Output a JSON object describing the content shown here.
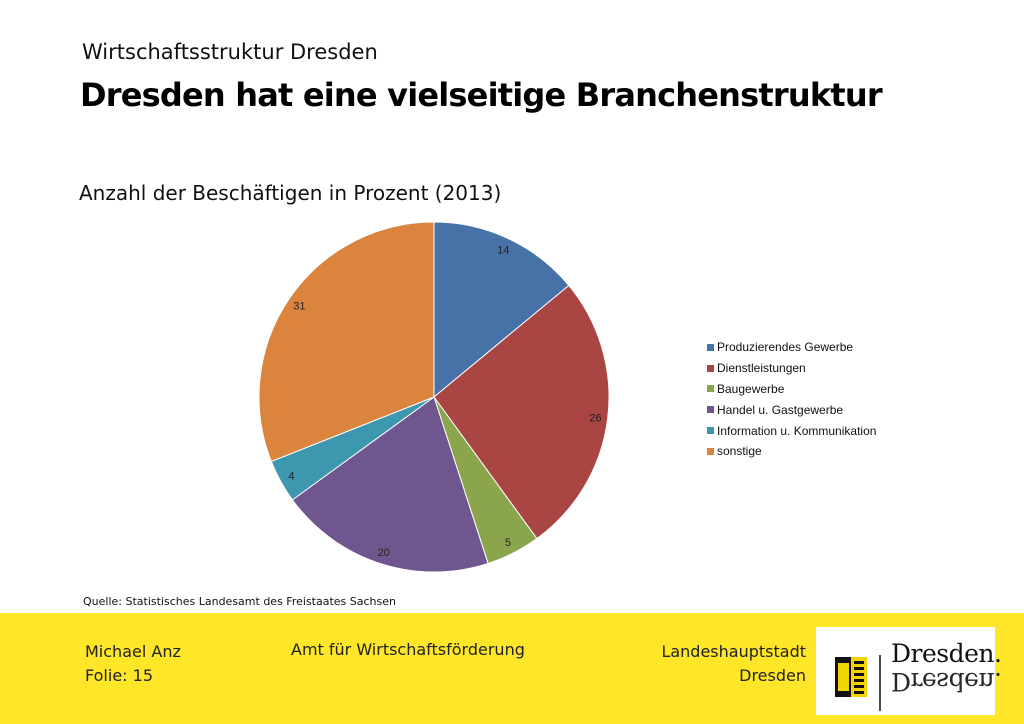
{
  "header": {
    "supertitle": "Wirtschaftsstruktur Dresden",
    "title": "Dresden hat eine vielseitige Branchenstruktur"
  },
  "chart_data": {
    "type": "pie",
    "title": "Anzahl der Beschäftigen in Prozent (2013)",
    "categories": [
      "Produzierendes Gewerbe",
      "Dienstleistungen",
      "Baugewerbe",
      "Handel u. Gastgewerbe",
      "Information u. Kommunikation",
      "sonstige"
    ],
    "values": [
      14,
      26,
      5,
      20,
      4,
      31
    ],
    "colors": [
      "#4672a8",
      "#a94543",
      "#8aa54b",
      "#6f568f",
      "#3d98af",
      "#db843e"
    ],
    "legend_position": "right"
  },
  "source": "Quelle: Statistisches Landesamt des Freistaates Sachsen",
  "footer": {
    "author": "Michael Anz",
    "slide": "Folie: 15",
    "department": "Amt für Wirtschaftsförderung",
    "city_line1": "Landeshauptstadt",
    "city_line2": "Dresden",
    "logo_text": "Dresden."
  }
}
